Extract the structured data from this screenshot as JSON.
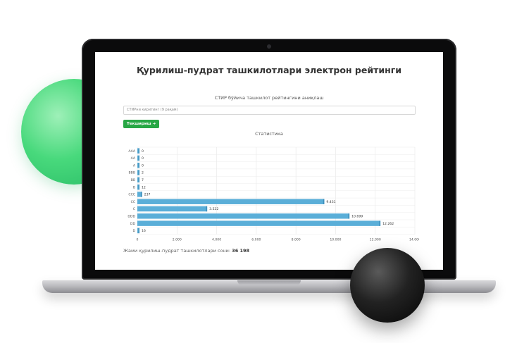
{
  "page": {
    "title": "Қурилиш-пудрат ташкилотлари электрон рейтинги"
  },
  "search": {
    "label": "СТИР бўйича ташкилот рейтингини аниқлаш",
    "placeholder": "СТИРни киритинг (9 рақам)",
    "button_label": "Текшириш",
    "button_icon": "arrow-right-icon",
    "button_color": "#28a745"
  },
  "stats": {
    "title": "Статистика",
    "total_label": "Жами қурилиш-пудрат ташкилотлари сони:",
    "total_value": "36 198"
  },
  "chart_data": {
    "type": "bar",
    "orientation": "horizontal",
    "categories": [
      "AAA",
      "AA",
      "A",
      "BBB",
      "BB",
      "B",
      "CCC",
      "CC",
      "C",
      "DDD",
      "DD",
      "D"
    ],
    "values": [
      0,
      0,
      0,
      2,
      7,
      12,
      237,
      9431,
      3522,
      10699,
      12262,
      16
    ],
    "value_labels": [
      "0",
      "0",
      "0",
      "2",
      "7",
      "12",
      "237",
      "9.431",
      "3.522",
      "10.699",
      "12.262",
      "16"
    ],
    "xlim": [
      0,
      14000
    ],
    "xticks": [
      "0",
      "2.000",
      "4.000",
      "6.000",
      "8.000",
      "10.000",
      "12.000",
      "14.000"
    ],
    "bar_color": "#5aaed8",
    "grid": true
  }
}
